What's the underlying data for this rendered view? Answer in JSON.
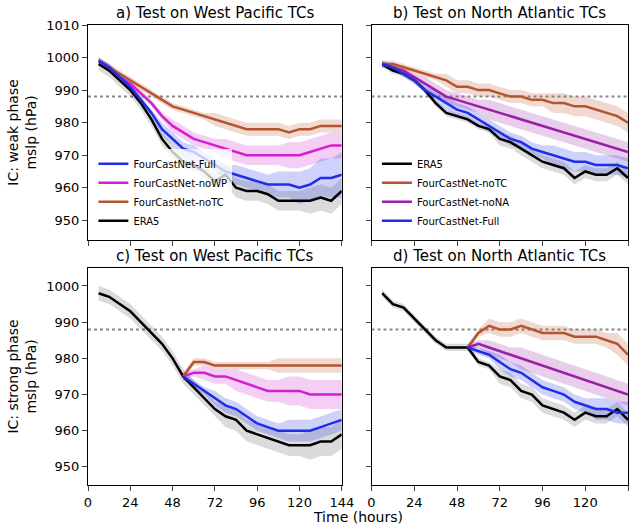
{
  "chart_data": [
    {
      "type": "line",
      "title": "a) Test on West Pacific TCs",
      "ylabel": "IC: weak phase\nmslp (hPa)",
      "x": [
        6,
        12,
        18,
        24,
        30,
        36,
        42,
        48,
        54,
        60,
        66,
        72,
        78,
        84,
        90,
        96,
        102,
        108,
        114,
        120,
        126,
        132,
        138,
        144
      ],
      "xlim": [
        0,
        144
      ],
      "xticks": [
        0,
        24,
        48,
        72,
        96,
        120,
        144
      ],
      "ylim": [
        944,
        1010
      ],
      "yticks": [
        950,
        960,
        970,
        980,
        990,
        1000,
        1010
      ],
      "tick_labels": "y",
      "legend": "lower left",
      "reference_line": {
        "value": 988,
        "line_style": "dotted"
      },
      "series": [
        {
          "name": "ERA5",
          "color": "#000000",
          "values": [
            998,
            996,
            993,
            990,
            986,
            981,
            975,
            971,
            968,
            967,
            965,
            962,
            964,
            960,
            959,
            959,
            958,
            956,
            956,
            956,
            956,
            957,
            956,
            959
          ],
          "spread": [
            2,
            2,
            2,
            2,
            2,
            2,
            2,
            2,
            2,
            2,
            2,
            2,
            3,
            3,
            3,
            3,
            3,
            3,
            3,
            3,
            4,
            4,
            4,
            4
          ]
        },
        {
          "name": "FourCastNet-noTC",
          "color": "#b5542f",
          "values": [
            999,
            997,
            995,
            993,
            991,
            989,
            987,
            985,
            984,
            983,
            982,
            981,
            980,
            979,
            978,
            978,
            978,
            978,
            977,
            978,
            978,
            979,
            979,
            979
          ],
          "spread": [
            1,
            1,
            1,
            1,
            1,
            1,
            1,
            1,
            1,
            1,
            1,
            2,
            2,
            2,
            2,
            2,
            2,
            2,
            2,
            2,
            2,
            2,
            2,
            2
          ]
        },
        {
          "name": "FourCastNet-noWP",
          "color": "#d21fd2",
          "values": [
            999,
            997,
            994,
            992,
            989,
            986,
            982,
            979,
            977,
            975,
            974,
            973,
            972,
            971,
            970,
            970,
            970,
            970,
            970,
            970,
            971,
            972,
            973,
            973
          ],
          "spread": [
            1,
            1,
            1,
            1,
            1,
            1,
            1,
            2,
            2,
            2,
            2,
            2,
            3,
            3,
            3,
            3,
            3,
            3,
            4,
            4,
            4,
            4,
            4,
            4
          ]
        },
        {
          "name": "FourCastNet-Full",
          "color": "#1f2fe6",
          "values": [
            999,
            997,
            994,
            991,
            987,
            983,
            978,
            975,
            972,
            971,
            969,
            967,
            965,
            964,
            963,
            962,
            961,
            961,
            961,
            960,
            961,
            963,
            963,
            964
          ],
          "spread": [
            1,
            1,
            1,
            1,
            1,
            1,
            2,
            2,
            2,
            2,
            2,
            2,
            2,
            3,
            3,
            3,
            3,
            4,
            4,
            5,
            5,
            6,
            6,
            7
          ]
        }
      ]
    },
    {
      "type": "line",
      "title": "b) Test on North Atlantic TCs",
      "x": [
        6,
        12,
        18,
        24,
        30,
        36,
        42,
        48,
        54,
        60,
        66,
        72,
        78,
        84,
        90,
        96,
        102,
        108,
        114,
        120,
        126,
        132,
        138,
        144
      ],
      "xlim": [
        0,
        144
      ],
      "xticks": [
        0,
        24,
        48,
        72,
        96,
        120,
        144
      ],
      "ylim": [
        944,
        1010
      ],
      "yticks": [
        950,
        960,
        970,
        980,
        990,
        1000,
        1010
      ],
      "tick_labels": false,
      "legend": "lower left",
      "reference_line": {
        "value": 988,
        "line_style": "dotted"
      },
      "series": [
        {
          "name": "ERA5",
          "color": "#000000",
          "values": [
            998,
            996,
            995,
            993,
            990,
            986,
            983,
            982,
            981,
            979,
            978,
            975,
            974,
            972,
            970,
            968,
            967,
            966,
            963,
            965,
            964,
            964,
            966,
            963
          ],
          "spread": [
            1,
            1,
            1,
            1,
            1,
            1,
            1,
            1,
            1,
            1,
            1,
            2,
            2,
            2,
            2,
            2,
            2,
            2,
            2,
            2,
            2,
            2,
            2,
            2
          ]
        },
        {
          "name": "FourCastNet-noTC",
          "color": "#b5542f",
          "values": [
            998,
            998,
            997,
            996,
            995,
            994,
            993,
            991,
            991,
            990,
            990,
            989,
            988,
            988,
            987,
            987,
            986,
            986,
            985,
            985,
            984,
            983,
            982,
            980
          ],
          "spread": [
            1,
            1,
            1,
            1,
            1,
            1,
            2,
            2,
            2,
            2,
            2,
            2,
            2,
            2,
            2,
            2,
            3,
            3,
            3,
            3,
            3,
            3,
            3,
            3
          ]
        },
        {
          "name": "FourCastNet-noNA",
          "color": "#9a1ea8",
          "values": [
            998,
            997,
            996,
            994,
            992,
            990,
            988,
            987,
            986,
            985,
            984,
            983,
            982,
            981,
            980,
            979,
            978,
            977,
            976,
            975,
            974,
            973,
            972,
            971
          ],
          "spread": [
            1,
            1,
            1,
            1,
            2,
            2,
            2,
            2,
            2,
            2,
            3,
            3,
            3,
            3,
            3,
            3,
            3,
            3,
            3,
            3,
            3,
            3,
            3,
            3
          ]
        },
        {
          "name": "FourCastNet-Full",
          "color": "#1f2fe6",
          "values": [
            998,
            997,
            995,
            993,
            990,
            988,
            986,
            984,
            983,
            981,
            979,
            977,
            975,
            974,
            972,
            971,
            970,
            969,
            968,
            968,
            967,
            967,
            967,
            966
          ],
          "spread": [
            1,
            1,
            1,
            1,
            1,
            2,
            2,
            2,
            2,
            2,
            2,
            2,
            2,
            2,
            2,
            2,
            3,
            3,
            3,
            3,
            3,
            3,
            3,
            3
          ]
        }
      ]
    },
    {
      "type": "line",
      "title": "c) Test on West Pacific TCs",
      "ylabel": "IC: strong phase\nmslp (hPa)",
      "xlabel": "Time (hours)",
      "x": [
        6,
        12,
        18,
        24,
        30,
        36,
        42,
        48,
        54,
        60,
        66,
        72,
        78,
        84,
        90,
        96,
        102,
        108,
        114,
        120,
        126,
        132,
        138,
        144
      ],
      "xlim": [
        0,
        144
      ],
      "xticks": [
        0,
        24,
        48,
        72,
        96,
        120,
        144
      ],
      "ylim": [
        945,
        1005
      ],
      "yticks": [
        950,
        960,
        970,
        980,
        990,
        1000
      ],
      "tick_labels": true,
      "reference_line": {
        "value": 988,
        "line_style": "dotted"
      },
      "series": [
        {
          "color": "#000000",
          "values": [
            998,
            997,
            995,
            993,
            990,
            987,
            984,
            980,
            975,
            972,
            969,
            966,
            964,
            963,
            960,
            959,
            958,
            957,
            956,
            956,
            956,
            957,
            957,
            959
          ],
          "spread": [
            2,
            2,
            2,
            2,
            2,
            2,
            2,
            2,
            2,
            2,
            2,
            2,
            3,
            3,
            3,
            3,
            3,
            3,
            3,
            3,
            4,
            4,
            4,
            4
          ]
        },
        {
          "color": "#b5542f",
          "values": [
            null,
            null,
            null,
            null,
            null,
            null,
            null,
            null,
            975,
            979,
            979,
            978,
            978,
            978,
            978,
            978,
            978,
            978,
            978,
            978,
            978,
            978,
            978,
            978
          ],
          "spread": [
            null,
            null,
            null,
            null,
            null,
            null,
            null,
            null,
            1,
            1,
            1,
            1,
            1,
            1,
            1,
            1,
            1,
            2,
            2,
            2,
            2,
            2,
            2,
            2
          ]
        },
        {
          "color": "#d21fd2",
          "values": [
            null,
            null,
            null,
            null,
            null,
            null,
            null,
            null,
            975,
            976,
            976,
            975,
            975,
            974,
            973,
            972,
            971,
            971,
            971,
            971,
            970,
            970,
            970,
            970
          ],
          "spread": [
            null,
            null,
            null,
            null,
            null,
            null,
            null,
            null,
            1,
            1,
            2,
            2,
            2,
            3,
            3,
            3,
            3,
            3,
            4,
            4,
            4,
            4,
            4,
            4
          ]
        },
        {
          "color": "#1f2fe6",
          "values": [
            null,
            null,
            null,
            null,
            null,
            null,
            null,
            null,
            975,
            973,
            971,
            969,
            967,
            966,
            964,
            962,
            961,
            960,
            960,
            960,
            960,
            961,
            962,
            963
          ],
          "spread": [
            null,
            null,
            null,
            null,
            null,
            null,
            null,
            null,
            1,
            1,
            1,
            2,
            2,
            2,
            2,
            2,
            2,
            2,
            3,
            3,
            3,
            3,
            3,
            3
          ]
        }
      ]
    },
    {
      "type": "line",
      "title": "d) Test on North Atlantic TCs",
      "x": [
        6,
        12,
        18,
        24,
        30,
        36,
        42,
        48,
        54,
        60,
        66,
        72,
        78,
        84,
        90,
        96,
        102,
        108,
        114,
        120,
        126,
        132,
        138,
        144
      ],
      "xlim": [
        0,
        144
      ],
      "xticks": [
        0,
        24,
        48,
        72,
        96,
        120,
        144
      ],
      "ylim": [
        945,
        1005
      ],
      "yticks": [
        950,
        960,
        970,
        980,
        990,
        1000
      ],
      "tick_labels": "x",
      "reference_line": {
        "value": 988,
        "line_style": "dotted"
      },
      "series": [
        {
          "color": "#000000",
          "values": [
            998,
            995,
            994,
            991,
            988,
            985,
            983,
            983,
            983,
            979,
            978,
            975,
            974,
            971,
            970,
            967,
            966,
            965,
            963,
            965,
            964,
            964,
            966,
            963
          ],
          "spread": [
            1,
            1,
            1,
            1,
            1,
            1,
            1,
            1,
            1,
            1,
            1,
            2,
            2,
            2,
            2,
            2,
            2,
            2,
            2,
            2,
            2,
            2,
            2,
            2
          ]
        },
        {
          "color": "#b5542f",
          "values": [
            null,
            null,
            null,
            null,
            null,
            null,
            null,
            null,
            983,
            987,
            989,
            988,
            988,
            989,
            988,
            987,
            987,
            987,
            986,
            986,
            986,
            985,
            984,
            981
          ],
          "spread": [
            null,
            null,
            null,
            null,
            null,
            null,
            null,
            null,
            1,
            1,
            2,
            2,
            2,
            2,
            2,
            2,
            2,
            2,
            2,
            2,
            2,
            2,
            3,
            3
          ]
        },
        {
          "color": "#9a1ea8",
          "values": [
            null,
            null,
            null,
            null,
            null,
            null,
            null,
            null,
            983,
            984,
            983,
            982,
            981,
            980,
            979,
            978,
            977,
            976,
            975,
            974,
            973,
            972,
            971,
            970
          ],
          "spread": [
            null,
            null,
            null,
            null,
            null,
            null,
            null,
            null,
            1,
            1,
            2,
            2,
            2,
            3,
            3,
            3,
            3,
            3,
            3,
            3,
            3,
            3,
            3,
            3
          ]
        },
        {
          "color": "#1f2fe6",
          "values": [
            null,
            null,
            null,
            null,
            null,
            null,
            null,
            null,
            983,
            982,
            981,
            979,
            977,
            976,
            974,
            972,
            971,
            970,
            968,
            967,
            966,
            966,
            965,
            965
          ],
          "spread": [
            null,
            null,
            null,
            null,
            null,
            null,
            null,
            null,
            1,
            1,
            1,
            2,
            2,
            2,
            2,
            2,
            2,
            2,
            2,
            2,
            3,
            3,
            3,
            3
          ]
        }
      ]
    }
  ]
}
